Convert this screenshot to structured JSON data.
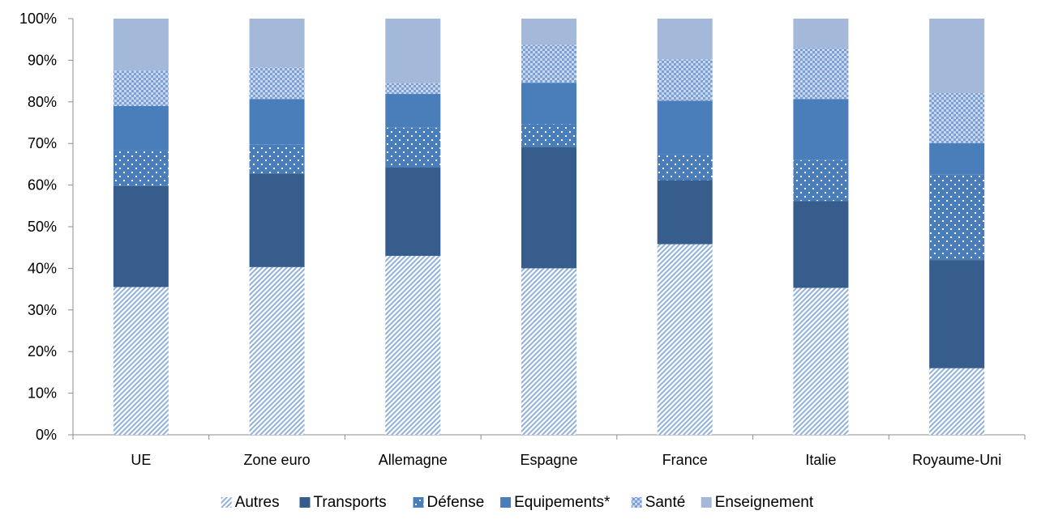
{
  "chart_data": {
    "type": "bar",
    "stacked": true,
    "percent": true,
    "categories": [
      "UE",
      "Zone euro",
      "Allemagne",
      "Espagne",
      "France",
      "Italie",
      "Royaume-Uni"
    ],
    "series": [
      {
        "name": "Autres",
        "values": [
          35.5,
          40.3,
          43.0,
          40.0,
          45.8,
          35.3,
          16.0
        ],
        "color": "#8fb0dc",
        "pattern": "diagonal-stripes"
      },
      {
        "name": "Transports",
        "values": [
          24.3,
          22.5,
          21.2,
          29.2,
          15.4,
          20.9,
          26.0
        ],
        "color": "#375d8c",
        "pattern": "solid"
      },
      {
        "name": "Défense",
        "values": [
          8.6,
          6.9,
          9.6,
          5.4,
          6.3,
          9.8,
          20.6
        ],
        "color": "#4a7ebb",
        "pattern": "dots"
      },
      {
        "name": "Equipements*",
        "values": [
          10.6,
          11.0,
          8.1,
          10.0,
          12.8,
          14.7,
          7.5
        ],
        "color": "#4a7ebb",
        "pattern": "solid"
      },
      {
        "name": "Santé",
        "values": [
          8.5,
          7.6,
          2.6,
          9.1,
          9.9,
          12.3,
          12.0
        ],
        "color": "#7a9fd6",
        "pattern": "checker"
      },
      {
        "name": "Enseignement",
        "values": [
          12.5,
          11.7,
          15.5,
          6.3,
          9.8,
          7.0,
          17.9
        ],
        "color": "#a4b8d9",
        "pattern": "solid"
      }
    ],
    "ylim": [
      0,
      100
    ],
    "ytick_labels": [
      "0%",
      "10%",
      "20%",
      "30%",
      "40%",
      "50%",
      "60%",
      "70%",
      "80%",
      "90%",
      "100%"
    ],
    "grid": false,
    "legend": "bottom"
  }
}
